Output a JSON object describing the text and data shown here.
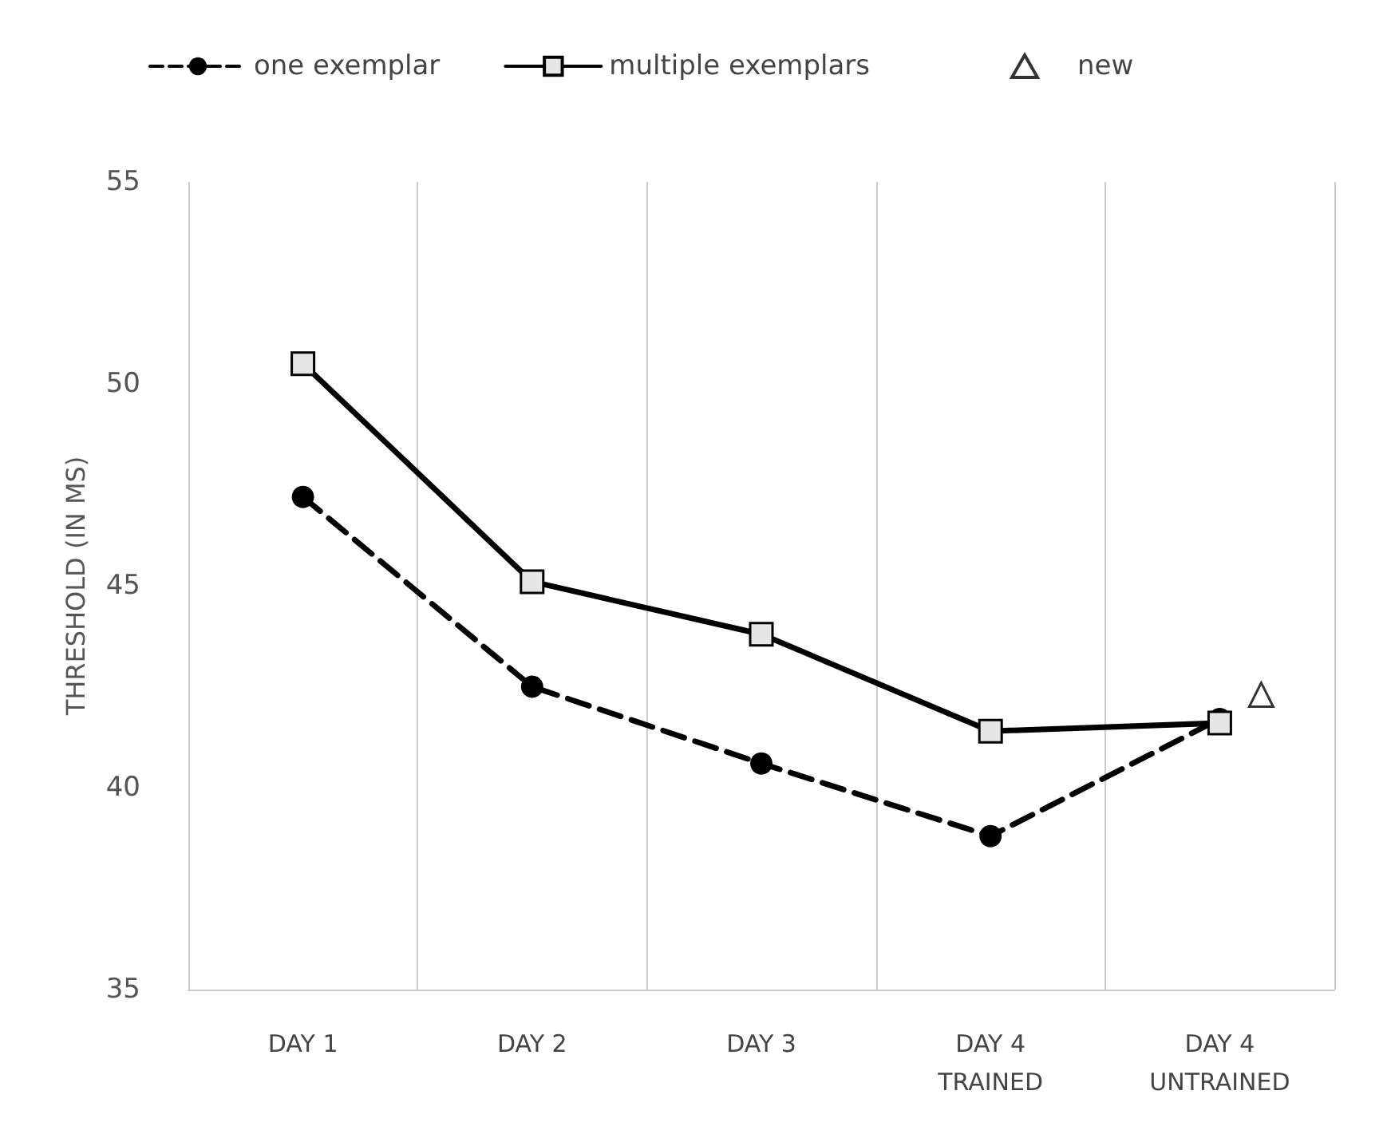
{
  "chart_data": {
    "type": "line",
    "ylabel": "THRESHOLD (IN MS)",
    "categories": [
      "DAY 1",
      "DAY 2",
      "DAY 3",
      "DAY 4\nTRAINED",
      "DAY 4\nUNTRAINED"
    ],
    "series": [
      {
        "name": "one exemplar",
        "color": "#000000",
        "marker": "circle",
        "line_style": "dashed",
        "values": [
          47.2,
          42.5,
          40.6,
          38.8,
          41.7
        ]
      },
      {
        "name": "multiple exemplars",
        "color": "#000000",
        "marker": "square",
        "line_style": "solid",
        "values": [
          50.5,
          45.1,
          43.8,
          41.4,
          41.6
        ]
      },
      {
        "name": "new",
        "type": "scatter",
        "color": "#000000",
        "marker": "triangle",
        "values": [
          null,
          null,
          null,
          null,
          42.3
        ]
      }
    ],
    "ylim": [
      35,
      55
    ],
    "yticks": [
      35,
      40,
      45,
      50,
      55
    ],
    "grid": "x",
    "legend": "top"
  }
}
